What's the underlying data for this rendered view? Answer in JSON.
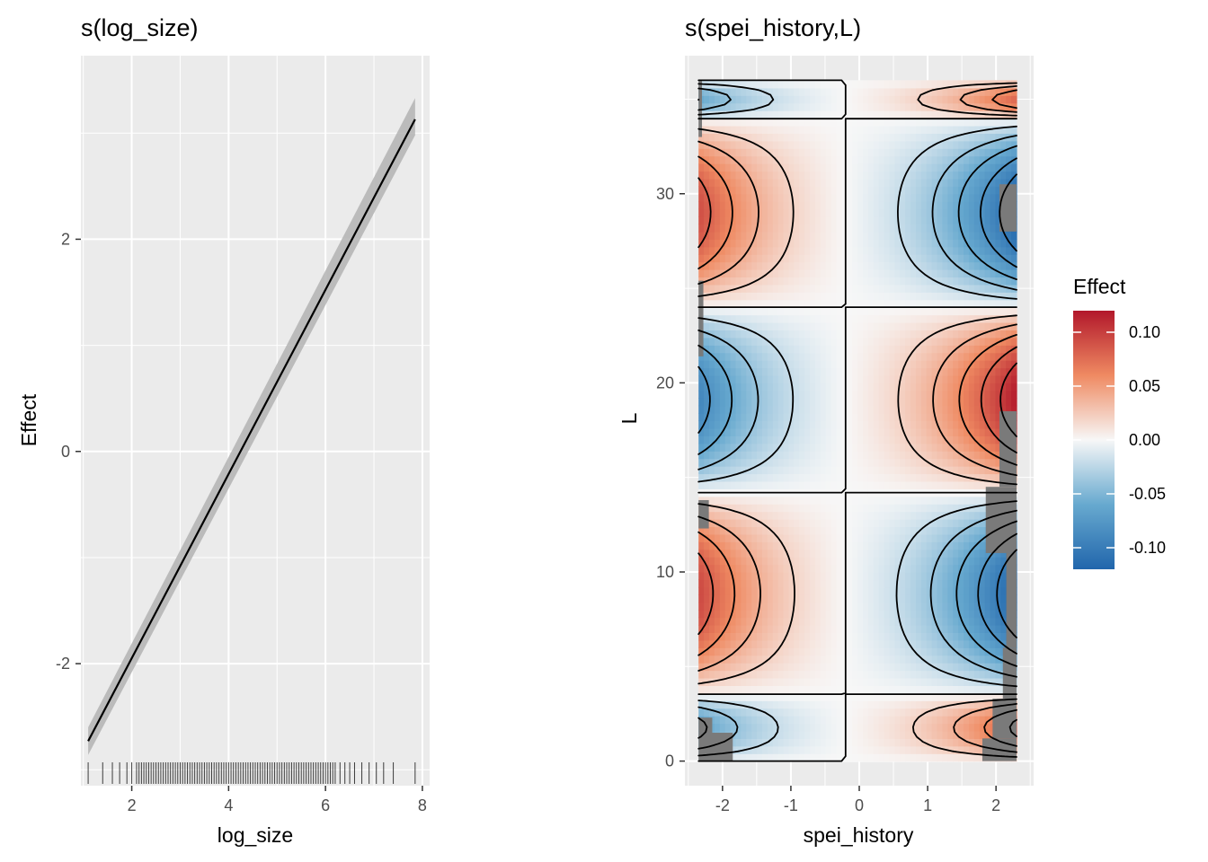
{
  "chart_data": [
    {
      "type": "line",
      "title": "s(log_size)",
      "xlabel": "log_size",
      "ylabel": "Effect",
      "xlim": [
        0.95,
        8.15
      ],
      "ylim": [
        -3.15,
        3.73
      ],
      "x_ticks": [
        2,
        4,
        6,
        8
      ],
      "x_tick_labels": [
        "2",
        "4",
        "6",
        "8"
      ],
      "y_ticks": [
        -2,
        0,
        2
      ],
      "y_tick_labels": [
        "-2",
        "0",
        "2"
      ],
      "grid": true,
      "series": [
        {
          "x": [
            1.1,
            7.85
          ],
          "y": [
            -2.73,
            3.13
          ],
          "ci_lower": [
            -2.86,
            2.98
          ],
          "ci_upper": [
            -2.6,
            3.33
          ]
        }
      ],
      "rug_x": [
        1.1,
        1.4,
        1.6,
        1.75,
        1.9,
        2.0,
        2.1,
        2.15,
        2.2,
        2.25,
        2.3,
        2.35,
        2.4,
        2.45,
        2.5,
        2.55,
        2.6,
        2.65,
        2.7,
        2.75,
        2.8,
        2.85,
        2.9,
        2.95,
        3.0,
        3.05,
        3.1,
        3.15,
        3.2,
        3.25,
        3.3,
        3.35,
        3.4,
        3.45,
        3.5,
        3.55,
        3.6,
        3.65,
        3.7,
        3.75,
        3.8,
        3.85,
        3.9,
        3.95,
        4.0,
        4.05,
        4.1,
        4.15,
        4.2,
        4.25,
        4.3,
        4.35,
        4.4,
        4.45,
        4.5,
        4.55,
        4.6,
        4.65,
        4.7,
        4.75,
        4.8,
        4.85,
        4.9,
        4.95,
        5.0,
        5.05,
        5.1,
        5.15,
        5.2,
        5.25,
        5.3,
        5.35,
        5.4,
        5.45,
        5.5,
        5.55,
        5.6,
        5.65,
        5.7,
        5.75,
        5.8,
        5.85,
        5.9,
        5.95,
        6.0,
        6.05,
        6.1,
        6.15,
        6.2,
        6.3,
        6.4,
        6.5,
        6.6,
        6.75,
        6.9,
        7.05,
        7.2,
        7.4,
        7.85
      ]
    },
    {
      "type": "heatmap",
      "title": "s(spei_history,L)",
      "xlabel": "spei_history",
      "ylabel": "L",
      "xlim": [
        -2.55,
        2.55
      ],
      "ylim": [
        -1.3,
        37.3
      ],
      "x_ticks": [
        -2,
        -1,
        0,
        1,
        2
      ],
      "x_tick_labels": [
        "-2",
        "-1",
        "0",
        "1",
        "2"
      ],
      "y_ticks": [
        0,
        10,
        20,
        30
      ],
      "y_tick_labels": [
        "0",
        "10",
        "20",
        "30"
      ],
      "grid": true,
      "fill_range": [
        -0.12,
        0.12
      ],
      "legend": {
        "title": "Effect",
        "position": "right",
        "breaks": [
          0.1,
          0.05,
          0.0,
          -0.05,
          -0.1
        ],
        "labels": [
          "0.10",
          "0.05",
          "0.00",
          "-0.05",
          "-0.10"
        ],
        "colors": [
          "#b2182b",
          "#ef8a62",
          "#f7f7f7",
          "#67a9cf",
          "#2166ac"
        ]
      },
      "surface": {
        "amplitude": 0.11,
        "x_range": [
          -2.35,
          2.3
        ],
        "y_range": [
          0,
          36
        ],
        "bands": [
          {
            "y": [
              0,
              3.5
            ],
            "sign": 1
          },
          {
            "y": [
              3.5,
              14.2
            ],
            "sign": -1
          },
          {
            "y": [
              14.2,
              24
            ],
            "sign": 1
          },
          {
            "y": [
              24,
              34
            ],
            "sign": -1
          },
          {
            "y": [
              34,
              36
            ],
            "sign": 1
          }
        ],
        "contour_step": 0.02
      },
      "missing_regions": [
        {
          "side": "left",
          "y": [
            0,
            1.5
          ],
          "x_edge": -1.85
        },
        {
          "side": "left",
          "y": [
            1.5,
            2.3
          ],
          "x_edge": -2.15
        },
        {
          "side": "left",
          "y": [
            12.3,
            13.8
          ],
          "x_edge": -2.2
        },
        {
          "side": "left",
          "y": [
            21.4,
            25.4
          ],
          "x_edge": -2.28
        },
        {
          "side": "left",
          "y": [
            33,
            36
          ],
          "x_edge": -2.3
        },
        {
          "side": "right",
          "y": [
            0,
            1.2
          ],
          "x_edge": 1.8
        },
        {
          "side": "right",
          "y": [
            1.2,
            3.3
          ],
          "x_edge": 1.95
        },
        {
          "side": "right",
          "y": [
            3.3,
            6
          ],
          "x_edge": 2.1
        },
        {
          "side": "right",
          "y": [
            6,
            11
          ],
          "x_edge": 2.15
        },
        {
          "side": "right",
          "y": [
            11,
            14.5
          ],
          "x_edge": 1.85
        },
        {
          "side": "right",
          "y": [
            14.5,
            18.5
          ],
          "x_edge": 2.05
        },
        {
          "side": "right",
          "y": [
            28,
            30.5
          ],
          "x_edge": 2.05
        }
      ]
    }
  ]
}
